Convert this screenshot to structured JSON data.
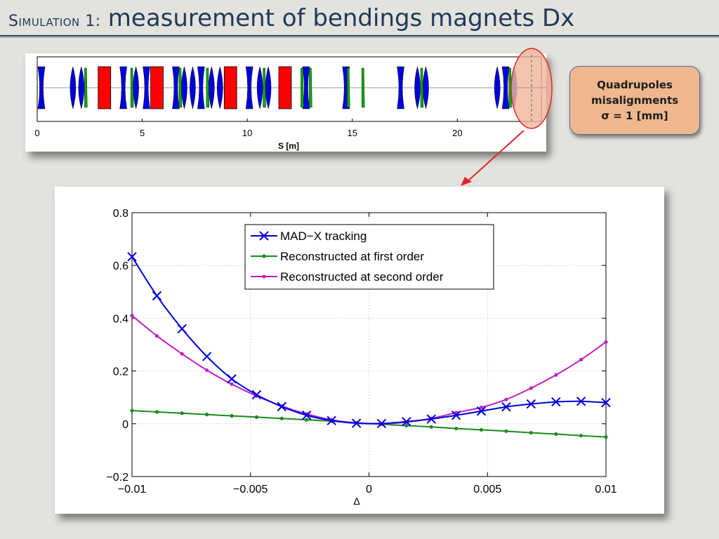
{
  "slide": {
    "title_prefix": "Simulation 1:",
    "title_main": "measurement of bendings magnets Dx"
  },
  "callout": {
    "line1": "Quadrupoles",
    "line2": "misalignments",
    "line3": "σ = 1 [mm]"
  },
  "colors": {
    "title": "#1f3a5a",
    "callout_fill": "#f0b78f",
    "highlight_fill": "#f0b79b",
    "highlight_stroke": "#e0252b",
    "arrow": "#e0252b",
    "dipole": "#ff0000",
    "quadrupole": "#0000dd",
    "sextupole": "#00aa00"
  },
  "lattice": {
    "xlabel": "S [m]",
    "xlim": [
      0,
      24
    ],
    "ticks": [
      "0",
      "5",
      "10",
      "15",
      "20"
    ],
    "dipoles": [
      {
        "s_start": 2.9,
        "s_end": 3.5
      },
      {
        "s_start": 5.4,
        "s_end": 6.0
      },
      {
        "s_start": 8.9,
        "s_end": 9.5
      },
      {
        "s_start": 11.5,
        "s_end": 12.1
      }
    ],
    "quadrupoles": [
      {
        "s": 0.2,
        "type": "d"
      },
      {
        "s": 1.7,
        "type": "f"
      },
      {
        "s": 2.1,
        "type": "f"
      },
      {
        "s": 4.1,
        "type": "d"
      },
      {
        "s": 4.7,
        "type": "f"
      },
      {
        "s": 5.2,
        "type": "d"
      },
      {
        "s": 6.6,
        "type": "d"
      },
      {
        "s": 7.0,
        "type": "f"
      },
      {
        "s": 7.4,
        "type": "f"
      },
      {
        "s": 7.8,
        "type": "d"
      },
      {
        "s": 8.3,
        "type": "f"
      },
      {
        "s": 8.7,
        "type": "f"
      },
      {
        "s": 10.1,
        "type": "d"
      },
      {
        "s": 10.6,
        "type": "f"
      },
      {
        "s": 11.0,
        "type": "f"
      },
      {
        "s": 12.8,
        "type": "d"
      },
      {
        "s": 14.7,
        "type": "d"
      },
      {
        "s": 17.3,
        "type": "d"
      },
      {
        "s": 18.1,
        "type": "f"
      },
      {
        "s": 18.5,
        "type": "f"
      },
      {
        "s": 21.9,
        "type": "f"
      },
      {
        "s": 22.3,
        "type": "d"
      },
      {
        "s": 22.7,
        "type": "f"
      }
    ],
    "sextupoles": [
      2.3,
      4.5,
      6.8,
      8.1,
      10.8,
      12.6,
      13.0,
      14.8,
      15.5,
      18.3,
      22.5
    ]
  },
  "chart_data": {
    "type": "line",
    "xlabel": "Δ",
    "ylabel": "",
    "xlim": [
      -0.01,
      0.01
    ],
    "ylim": [
      -0.2,
      0.8
    ],
    "xticks": [
      -0.01,
      -0.005,
      0,
      0.005,
      0.01
    ],
    "xtick_labels": [
      "−0.01",
      "−0.005",
      "0",
      "0.005",
      "0.01"
    ],
    "yticks": [
      -0.2,
      0,
      0.2,
      0.4,
      0.6,
      0.8
    ],
    "ytick_labels": [
      "−0.2",
      "0",
      "0.2",
      "0.4",
      "0.6",
      "0.8"
    ],
    "grid": true,
    "legend_position": "top-center",
    "series": [
      {
        "name": "MAD−X tracking",
        "color": "#0000dd",
        "marker": "x",
        "x": [
          -0.01,
          -0.00895,
          -0.00789,
          -0.00684,
          -0.00579,
          -0.00474,
          -0.00368,
          -0.00263,
          -0.00158,
          -0.00053,
          0.00053,
          0.00158,
          0.00263,
          0.00368,
          0.00474,
          0.00579,
          0.00684,
          0.00789,
          0.00895,
          0.01
        ],
        "y": [
          0.633,
          0.485,
          0.36,
          0.255,
          0.17,
          0.11,
          0.065,
          0.032,
          0.012,
          0.002,
          0.001,
          0.008,
          0.018,
          0.032,
          0.048,
          0.064,
          0.075,
          0.083,
          0.085,
          0.08
        ]
      },
      {
        "name": "Reconstructed at first order",
        "color": "#1a8a1a",
        "marker": "dot",
        "x": [
          -0.01,
          -0.00895,
          -0.00789,
          -0.00684,
          -0.00579,
          -0.00474,
          -0.00368,
          -0.00263,
          -0.00158,
          -0.00053,
          0.00053,
          0.00158,
          0.00263,
          0.00368,
          0.00474,
          0.00579,
          0.00684,
          0.00789,
          0.00895,
          0.01
        ],
        "y": [
          0.05,
          0.045,
          0.04,
          0.035,
          0.03,
          0.025,
          0.02,
          0.015,
          0.01,
          0.004,
          -0.002,
          -0.007,
          -0.012,
          -0.018,
          -0.023,
          -0.028,
          -0.034,
          -0.039,
          -0.045,
          -0.05
        ]
      },
      {
        "name": "Reconstructed at second order",
        "color": "#c020c0",
        "marker": "dot",
        "x": [
          -0.01,
          -0.00895,
          -0.00789,
          -0.00684,
          -0.00579,
          -0.00474,
          -0.00368,
          -0.00263,
          -0.00158,
          -0.00053,
          0.00053,
          0.00158,
          0.00263,
          0.00368,
          0.00474,
          0.00579,
          0.00684,
          0.00789,
          0.00895,
          0.01
        ],
        "y": [
          0.41,
          0.333,
          0.265,
          0.203,
          0.15,
          0.105,
          0.067,
          0.037,
          0.015,
          0.003,
          0.0,
          0.006,
          0.02,
          0.042,
          0.062,
          0.092,
          0.135,
          0.185,
          0.243,
          0.31
        ]
      }
    ]
  }
}
